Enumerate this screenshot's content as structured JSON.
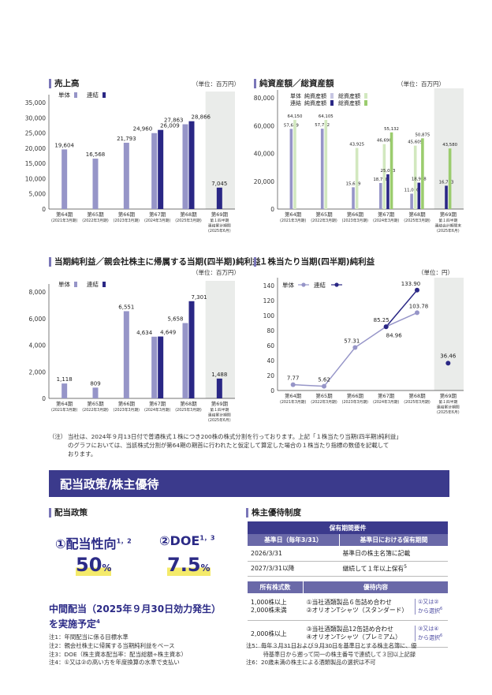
{
  "colors": {
    "tanpo": "#9695c8",
    "renketsu": "#2a2785",
    "shade": "#eaecea",
    "sou": "#9bcc6e",
    "sou_light": "#d2e8bf",
    "jun_light": "#c7c6e2",
    "band": "#3b3a8c",
    "accent": "#2b2a86"
  },
  "charts": {
    "sales": {
      "title": "売上高",
      "unit": "（単位：百万円）",
      "legend": {
        "tanpo": "単体",
        "renketsu": "連結"
      },
      "y_ticks": [
        "35,000",
        "30,000",
        "25,000",
        "20,000",
        "15,000",
        "10,000",
        "5,000",
        "0"
      ],
      "periods": [
        {
          "label": "第64期",
          "sub": [
            "(2021年3月期)"
          ]
        },
        {
          "label": "第65期",
          "sub": [
            "(2022年3月期)"
          ]
        },
        {
          "label": "第66期",
          "sub": [
            "(2023年3月期)"
          ]
        },
        {
          "label": "第67期",
          "sub": [
            "(2024年3月期)"
          ]
        },
        {
          "label": "第68期",
          "sub": [
            "(2025年3月期)"
          ]
        },
        {
          "label": "第69期",
          "sub": [
            "第１四半期",
            "連結累計期間",
            "(2025年6月)"
          ]
        }
      ],
      "labels": {
        "tanpo": [
          "19,604",
          "16,568",
          "21,793",
          "24,960",
          "27,863",
          ""
        ],
        "renketsu": [
          "",
          "",
          "",
          "26,009",
          "28,866",
          "7,045"
        ]
      }
    },
    "assets": {
      "title": "純資産額／総資産額",
      "unit": "（単位：百万円）",
      "legend": {
        "tanpo": "単体",
        "renketsu": "連結",
        "jun": "純資産額",
        "sou": "総資産額"
      },
      "y_ticks": [
        "80,000",
        "60,000",
        "40,000",
        "20,000",
        "0"
      ],
      "periods": [
        {
          "label": "第64期",
          "sub": [
            "(2021年3月期)"
          ]
        },
        {
          "label": "第65期",
          "sub": [
            "(2022年3月期)"
          ]
        },
        {
          "label": "第66期",
          "sub": [
            "(2023年3月期)"
          ]
        },
        {
          "label": "第67期",
          "sub": [
            "(2024年3月期)"
          ]
        },
        {
          "label": "第68期",
          "sub": [
            "(2025年3月期)"
          ]
        },
        {
          "label": "第69期",
          "sub": [
            "第１四半期",
            "連結会計期間末",
            "(2025年6月)"
          ]
        }
      ],
      "labels": {
        "jun_tanpo": [
          "57,659",
          "57,792",
          "15,669",
          "18,738",
          "11,050",
          ""
        ],
        "sou_tanpo": [
          "64,150",
          "64,105",
          "43,925",
          "46,690",
          "45,609",
          ""
        ],
        "jun_renketsu": [
          "",
          "",
          "",
          "25,013",
          "18,968",
          "16,783"
        ],
        "sou_renketsu": [
          "",
          "",
          "",
          "55,132",
          "50,875",
          "43,580"
        ]
      }
    },
    "profit": {
      "title": "当期純利益／親会社株主に帰属する当期(四半期)純利益",
      "unit": "（単位：百万円）",
      "legend": {
        "tanpo": "単体",
        "renketsu": "連結"
      },
      "y_ticks": [
        "8,000",
        "6,000",
        "4,000",
        "2,000",
        "0"
      ],
      "periods": [
        {
          "label": "第64期",
          "sub": [
            "(2021年3月期)"
          ]
        },
        {
          "label": "第65期",
          "sub": [
            "(2022年3月期)"
          ]
        },
        {
          "label": "第66期",
          "sub": [
            "(2023年3月期)"
          ]
        },
        {
          "label": "第67期",
          "sub": [
            "(2024年3月期)"
          ]
        },
        {
          "label": "第68期",
          "sub": [
            "(2025年3月期)"
          ]
        },
        {
          "label": "第69期",
          "sub": [
            "第１四半期",
            "連結累計期間",
            "(2025年6月)"
          ]
        }
      ],
      "labels": {
        "tanpo": [
          "1,118",
          "809",
          "6,551",
          "4,634",
          "5,658",
          ""
        ],
        "renketsu": [
          "",
          "",
          "",
          "4,649",
          "7,301",
          "1,488"
        ]
      }
    },
    "eps": {
      "title": "１株当たり当期(四半期)純利益",
      "unit": "（単位：円）",
      "legend": {
        "tanpo": "単体",
        "renketsu": "連結"
      },
      "y_ticks": [
        "140",
        "120",
        "100",
        "80",
        "60",
        "40",
        "20",
        "0"
      ],
      "periods": [
        {
          "label": "第64期",
          "sub": [
            "(2021年3月期)"
          ]
        },
        {
          "label": "第65期",
          "sub": [
            "(2022年3月期)"
          ]
        },
        {
          "label": "第66期",
          "sub": [
            "(2023年3月期)"
          ]
        },
        {
          "label": "第67期",
          "sub": [
            "(2024年3月期)"
          ]
        },
        {
          "label": "第68期",
          "sub": [
            "(2025年3月期)"
          ]
        },
        {
          "label": "第69期",
          "sub": [
            "第１四半期",
            "連結累計期間",
            "(2025年6月)"
          ]
        }
      ],
      "labels": {
        "tanpo": [
          "7.77",
          "5.62",
          "57.31",
          "85.25",
          "103.78"
        ],
        "renketsu": [
          "84.96",
          "133.90",
          "36.46"
        ]
      }
    }
  },
  "chart_data": [
    {
      "type": "bar",
      "title": "売上高",
      "categories": [
        "第64期",
        "第65期",
        "第66期",
        "第67期",
        "第68期",
        "第69期"
      ],
      "ylim": [
        0,
        35000
      ],
      "series": [
        {
          "name": "単体",
          "values": [
            19604,
            16568,
            21793,
            24960,
            27863,
            null
          ]
        },
        {
          "name": "連結",
          "values": [
            null,
            null,
            null,
            26009,
            28866,
            7045
          ]
        }
      ]
    },
    {
      "type": "bar",
      "title": "純資産額／総資産額",
      "categories": [
        "第64期",
        "第65期",
        "第66期",
        "第67期",
        "第68期",
        "第69期"
      ],
      "ylim": [
        0,
        80000
      ],
      "series": [
        {
          "name": "単体 純資産額",
          "values": [
            57659,
            57792,
            15669,
            18738,
            11050,
            null
          ]
        },
        {
          "name": "単体 総資産額",
          "values": [
            64150,
            64105,
            43925,
            46690,
            45609,
            null
          ]
        },
        {
          "name": "連結 純資産額",
          "values": [
            null,
            null,
            null,
            25013,
            18968,
            16783
          ]
        },
        {
          "name": "連結 総資産額",
          "values": [
            null,
            null,
            null,
            55132,
            50875,
            43580
          ]
        }
      ]
    },
    {
      "type": "bar",
      "title": "当期純利益／親会社株主に帰属する当期(四半期)純利益",
      "categories": [
        "第64期",
        "第65期",
        "第66期",
        "第67期",
        "第68期",
        "第69期"
      ],
      "ylim": [
        0,
        8000
      ],
      "series": [
        {
          "name": "単体",
          "values": [
            1118,
            809,
            6551,
            4634,
            5658,
            null
          ]
        },
        {
          "name": "連結",
          "values": [
            null,
            null,
            null,
            4649,
            7301,
            1488
          ]
        }
      ]
    },
    {
      "type": "line",
      "title": "１株当たり当期(四半期)純利益",
      "categories": [
        "第64期",
        "第65期",
        "第66期",
        "第67期",
        "第68期",
        "第69期"
      ],
      "ylim": [
        0,
        140
      ],
      "series": [
        {
          "name": "単体",
          "values": [
            7.77,
            5.62,
            57.31,
            85.25,
            103.78,
            null
          ]
        },
        {
          "name": "連結",
          "values": [
            null,
            null,
            null,
            84.96,
            133.9,
            36.46
          ]
        }
      ]
    }
  ],
  "chart_note": {
    "mark": "（注）",
    "lines": [
      "当社は、2024年９月13日付で普通株式１株につき200株の株式分割を行っております。上記「１株当たり当期(四半期)純利益」",
      "のグラフにおいては、当該株式分割が第64期の期首に行われたと仮定して算定した場合の１株当たり指標の数値を記載して",
      "おります。"
    ]
  },
  "band_title": "配当政策/株主優待",
  "dividend": {
    "title": "配当政策",
    "item1_label": "①配当性向",
    "item1_sup": "1，2",
    "item1_value": "50",
    "item1_unit": "%",
    "item2_label": "②DOE",
    "item2_sup": "1，3",
    "item2_value": "7.5",
    "item2_unit": "%",
    "interim_line1": "中間配当（2025年９月30日効力発生）",
    "interim_line2": "を実施予定",
    "interim_sup": "4",
    "notes": [
      "注1：年間配当に係る目標水準",
      "注2：親会社株主に帰属する当期純利益をベース",
      "注3：DOE（株主資本配当率：配当総額÷株主資本）",
      "注4：①又は②の高い方を年度換算の水準で支払い"
    ]
  },
  "benefit": {
    "title": "株主優待制度",
    "period_header": "保有期間要件",
    "col1_header": "基準日（毎年3/31）",
    "col2_header": "基準日における保有期間",
    "rows": [
      {
        "date": "2026/3/31",
        "cond": "基準日の株主名簿に記載",
        "sup": ""
      },
      {
        "date": "2027/3/31以降",
        "cond": "継続して１年以上保有",
        "sup": "5"
      }
    ],
    "shares_header": "所有株式数",
    "content_header": "優待内容",
    "tiers": [
      {
        "shares": [
          "1,000株以上",
          "2,000株未満"
        ],
        "items": [
          "①当社酒類製品６缶詰め合わせ",
          "②オリオンTシャツ（スタンダード）"
        ],
        "choice": [
          "①又は②",
          "から選択"
        ],
        "choice_sup": "6"
      },
      {
        "shares": [
          "2,000株以上"
        ],
        "items": [
          "③当社酒類製品12缶詰め合わせ",
          "④オリオンTシャツ（プレミアム）"
        ],
        "choice": [
          "③又は④",
          "から選択"
        ],
        "choice_sup": "6"
      }
    ],
    "notes": [
      "注5：毎年３月31日および９月30日を基準日とする株主名簿に、優",
      "　　　待基準日から遡って同一の株主番号で連続して３回以上記録",
      "注6：20歳未満の株主による酒類製品の選択は不可"
    ]
  }
}
